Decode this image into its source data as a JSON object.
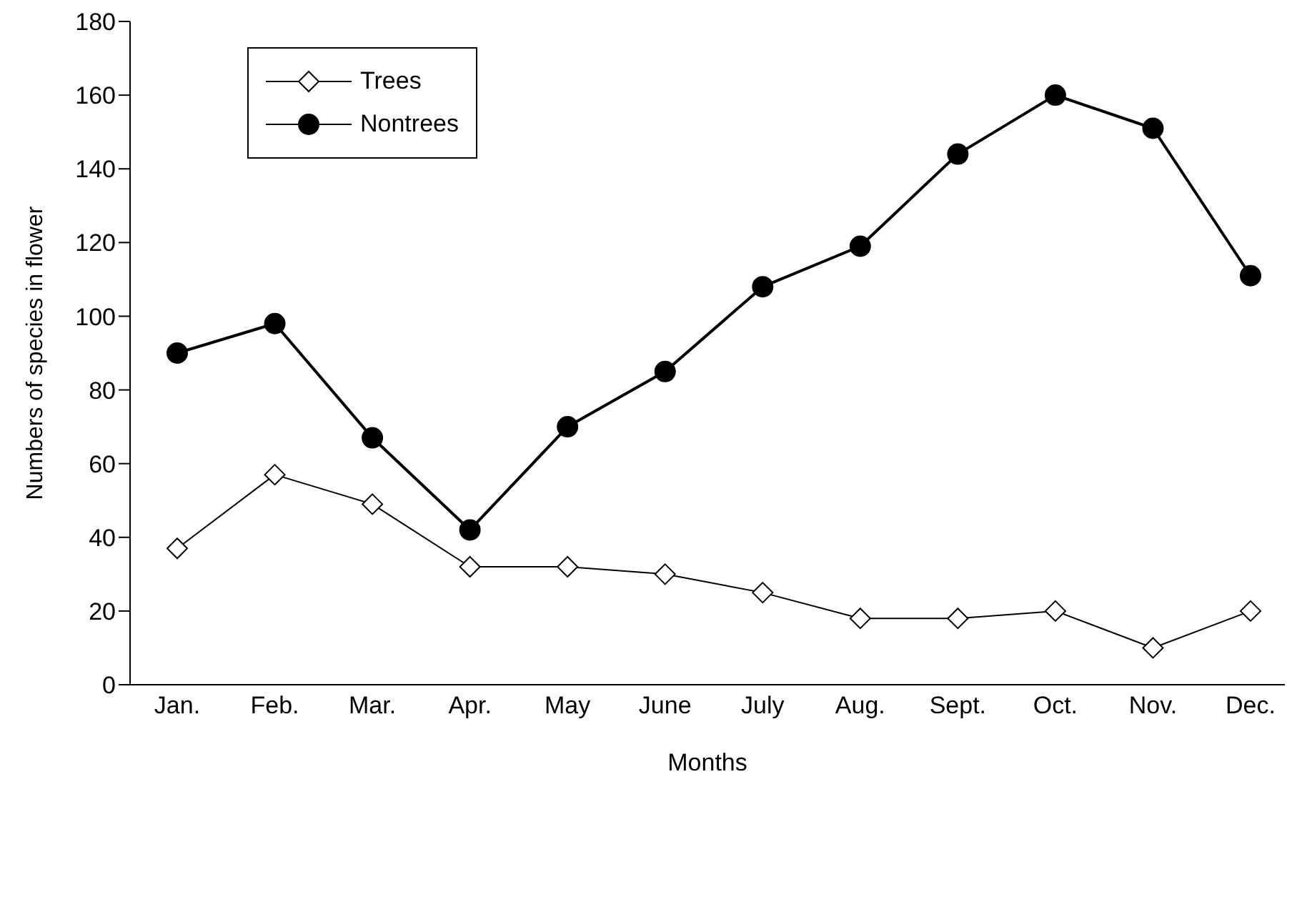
{
  "chart_data": {
    "type": "line",
    "xlabel": "Months",
    "ylabel": "Numbers of species in flower",
    "categories": [
      "Jan.",
      "Feb.",
      "Mar.",
      "Apr.",
      "May",
      "June",
      "July",
      "Aug.",
      "Sept.",
      "Oct.",
      "Nov.",
      "Dec."
    ],
    "series": [
      {
        "name": "Trees",
        "color": "#000000",
        "marker": "diamond",
        "values": [
          37,
          57,
          49,
          32,
          32,
          30,
          25,
          18,
          18,
          20,
          10,
          20
        ]
      },
      {
        "name": "Nontrees",
        "color": "#000000",
        "marker": "circle",
        "values": [
          90,
          98,
          67,
          42,
          70,
          85,
          108,
          119,
          144,
          160,
          151,
          111
        ]
      }
    ],
    "ylim": [
      0,
      180
    ],
    "yticks": [
      0,
      20,
      40,
      60,
      80,
      100,
      120,
      140,
      160,
      180
    ],
    "grid": false,
    "legend": "top left",
    "line_style": "solid"
  }
}
